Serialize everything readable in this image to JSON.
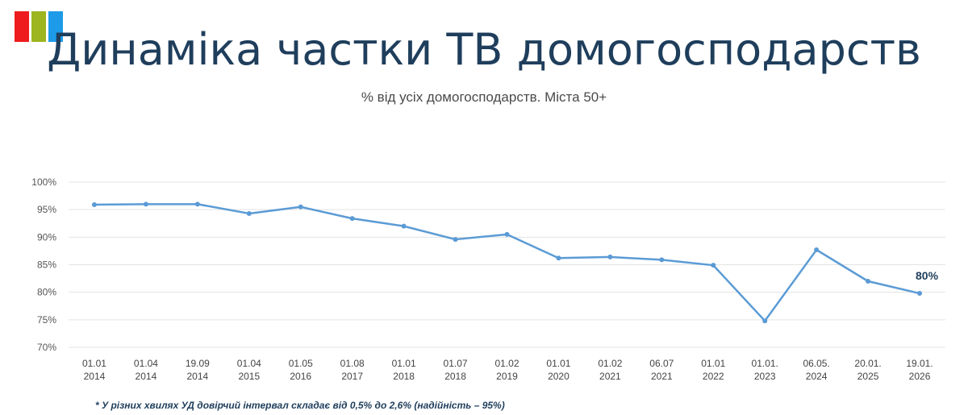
{
  "logo_colors": [
    "#ee1c1c",
    "#9cb520",
    "#1d9be8"
  ],
  "title": "Динаміка частки ТВ домогосподарств",
  "subtitle": "% від усіх домогосподарств. Міста 50+",
  "footnote": "* У різних хвилях УД довірчий інтервал складає від 0,5% до 2,6% (надійність – 95%)",
  "chart_data": {
    "type": "line",
    "title": "Динаміка частки ТВ домогосподарств",
    "categories": [
      [
        "01.01",
        "2014"
      ],
      [
        "01.04",
        "2014"
      ],
      [
        "19.09",
        "2014"
      ],
      [
        "01.04",
        "2015"
      ],
      [
        "01.05",
        "2016"
      ],
      [
        "01.08",
        "2017"
      ],
      [
        "01.01",
        "2018"
      ],
      [
        "01.07",
        "2018"
      ],
      [
        "01.02",
        "2019"
      ],
      [
        "01.01",
        "2020"
      ],
      [
        "01.02",
        "2021"
      ],
      [
        "06.07",
        "2021"
      ],
      [
        "01.01",
        "2022"
      ],
      [
        "01.01.",
        "2023"
      ],
      [
        "06.05.",
        "2024"
      ],
      [
        "20.01.",
        "2025"
      ],
      [
        "19.01.",
        "2026"
      ]
    ],
    "values": [
      95.9,
      96.0,
      96.0,
      94.3,
      95.5,
      93.4,
      92.0,
      89.6,
      90.5,
      86.2,
      86.4,
      85.9,
      84.9,
      74.8,
      87.7,
      82.0,
      79.8
    ],
    "yticks": [
      "70%",
      "75%",
      "80%",
      "85%",
      "90%",
      "95%",
      "100%"
    ],
    "ylim": [
      70,
      100
    ],
    "grid": true,
    "last_label": "80%",
    "line_color": "#5b9bd5"
  }
}
